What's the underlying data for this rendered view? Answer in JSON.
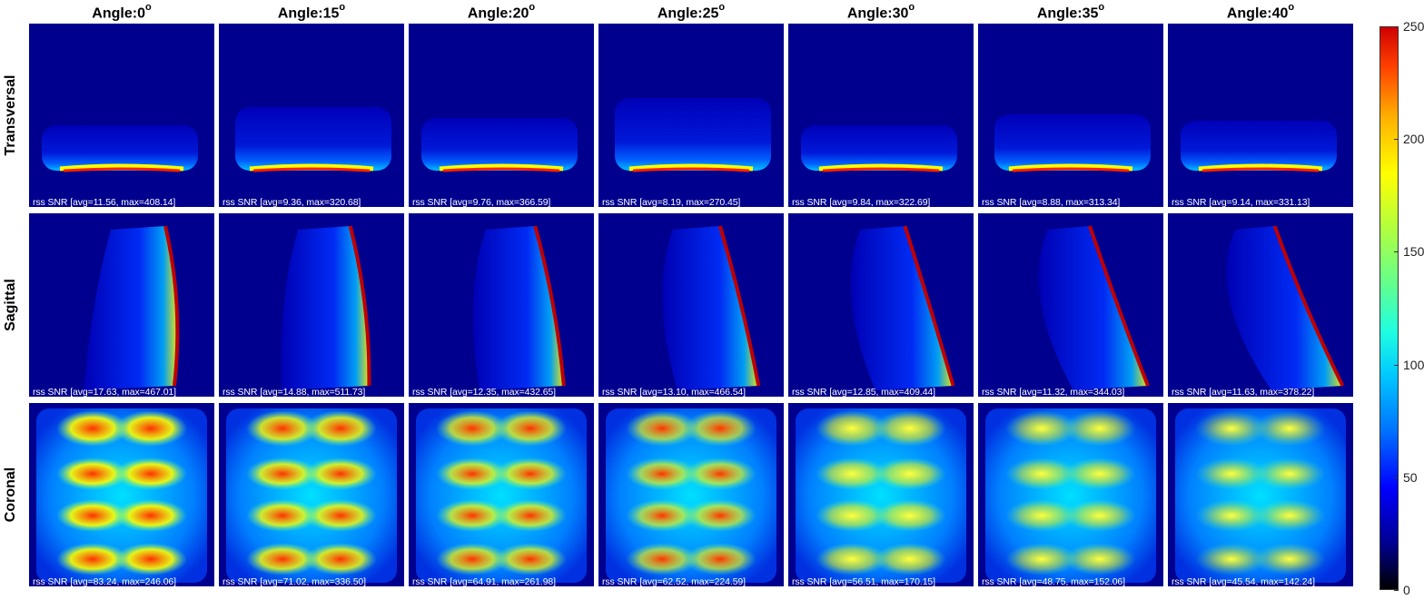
{
  "columns": [
    {
      "label": "Angle:",
      "angle": "0",
      "unit": "o"
    },
    {
      "label": "Angle:",
      "angle": "15",
      "unit": "o"
    },
    {
      "label": "Angle:",
      "angle": "20",
      "unit": "o"
    },
    {
      "label": "Angle:",
      "angle": "25",
      "unit": "o"
    },
    {
      "label": "Angle:",
      "angle": "30",
      "unit": "o"
    },
    {
      "label": "Angle:",
      "angle": "35",
      "unit": "o"
    },
    {
      "label": "Angle:",
      "angle": "40",
      "unit": "o"
    }
  ],
  "rows": [
    "Transversal",
    "Sagittal",
    "Coronal"
  ],
  "stats": [
    [
      "rss SNR [avg=11.56, max=408.14]",
      "rss SNR [avg=9.36, max=320.68]",
      "rss SNR [avg=9.76, max=366.59]",
      "rss SNR [avg=8.19, max=270.45]",
      "rss SNR [avg=9.84, max=322.69]",
      "rss SNR [avg=8.88, max=313.34]",
      "rss SNR [avg=9.14, max=331.13]"
    ],
    [
      "rss SNR [avg=17.63, max=467.01]",
      "rss SNR [avg=14.88, max=511.73]",
      "rss SNR [avg=12.35, max=432.65]",
      "rss SNR [avg=13.10, max=466.54]",
      "rss SNR [avg=12.85, max=409.44]",
      "rss SNR [avg=11.32, max=344.03]",
      "rss SNR [avg=11.63, max=378.22]"
    ],
    [
      "rss SNR [avg=83.24, max=246.06]",
      "rss SNR [avg=71.02, max=336.50]",
      "rss SNR [avg=64.91, max=261.98]",
      "rss SNR [avg=62.52, max=224.59]",
      "rss SNR [avg=56.51, max=170.15]",
      "rss SNR [avg=48.75, max=152.06]",
      "rss SNR [avg=45.54, max=142.24]"
    ]
  ],
  "colorbar": {
    "ticks": [
      "250",
      "200",
      "150",
      "100",
      "50",
      "0"
    ],
    "min": 0,
    "max": 250,
    "colors": {
      "low": "#000000",
      "background": "#00008f",
      "mid": "#00c8ff",
      "high": "#ffff00",
      "max": "#d00000"
    }
  }
}
